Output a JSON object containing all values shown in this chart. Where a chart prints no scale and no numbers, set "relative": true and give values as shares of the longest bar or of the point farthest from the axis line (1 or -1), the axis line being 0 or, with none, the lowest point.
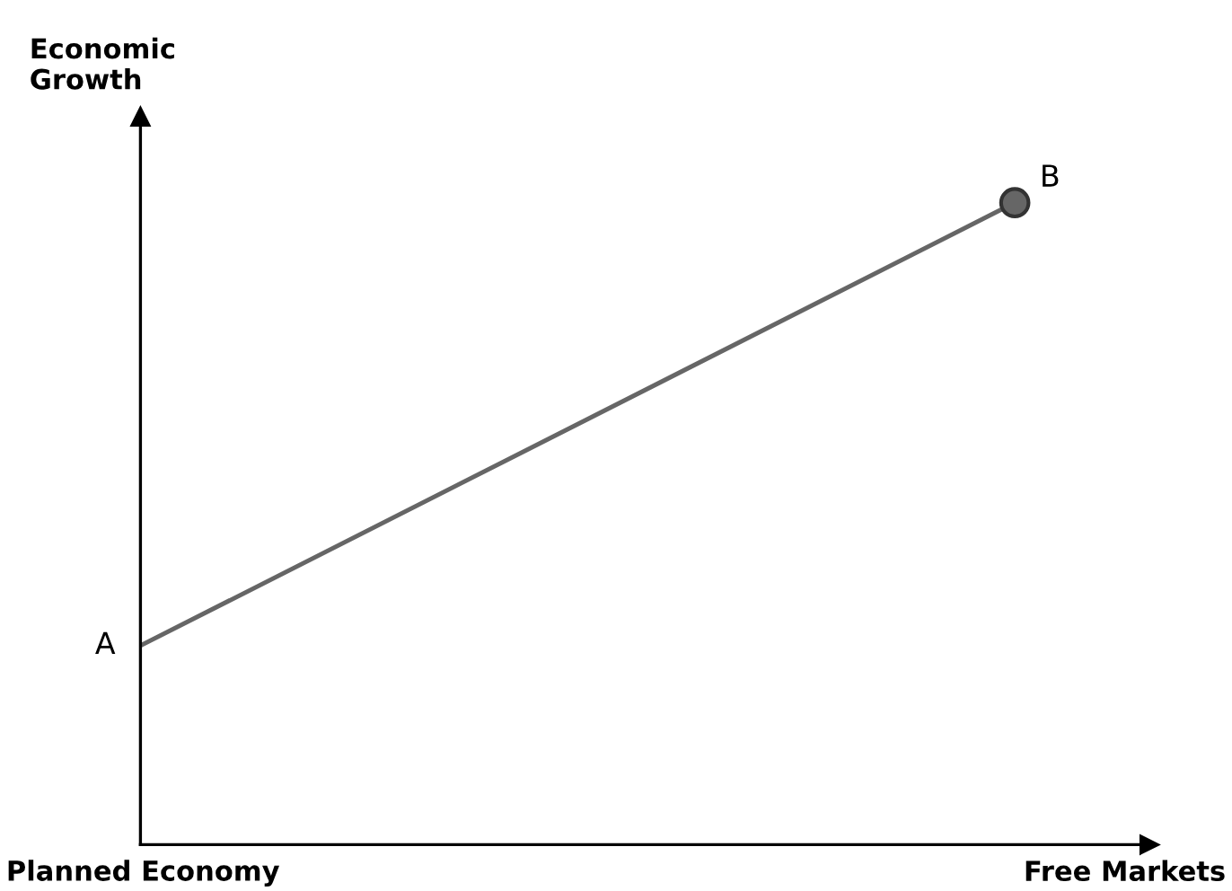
{
  "chart_data": {
    "type": "line",
    "relative": true,
    "ylabel": "Economic\nGrowth",
    "categories": [
      null,
      null
    ],
    "series": [
      {
        "color": "#666666",
        "values": [
          0.31,
          1
        ]
      }
    ],
    "marker": "circle",
    "line_style": "solid",
    "legend": false,
    "tick_labels": false,
    "annotations": [
      "A",
      "B",
      "Planned Economy",
      "Free Markets"
    ]
  }
}
